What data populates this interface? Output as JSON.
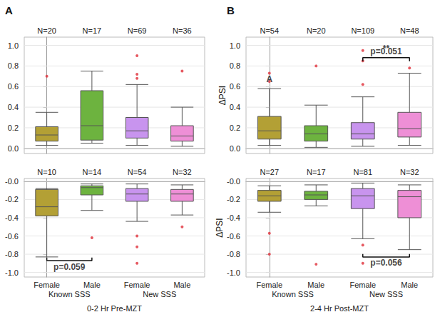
{
  "chart_data": [
    {
      "type": "boxplot",
      "title": "A",
      "categories": [
        "Female",
        "Male",
        "Female",
        "Male"
      ],
      "n_labels": [
        "N=20",
        "N=17",
        "N=69",
        "N=36"
      ],
      "boxes": [
        [
          0.03,
          0.07,
          0.13,
          0.21,
          0.35
        ],
        [
          0.05,
          0.08,
          0.22,
          0.56,
          0.75
        ],
        [
          0.03,
          0.1,
          0.17,
          0.3,
          0.62
        ],
        [
          0.02,
          0.07,
          0.12,
          0.22,
          0.4
        ]
      ],
      "outliers": [
        [
          0.7
        ],
        [],
        [
          0.9,
          0.72,
          0.68
        ],
        [
          0.75
        ]
      ],
      "colors": [
        "#b3a035",
        "#6db33f",
        "#c894ee",
        "#ee8fd6"
      ],
      "ylim": [
        -0.05,
        1.08
      ],
      "yticks": [
        {
          "value": 0,
          "label": "0.0"
        },
        0.2,
        0.4,
        0.6,
        0.8,
        {
          "value": 1,
          "label": "1.0"
        }
      ],
      "grid": true,
      "tick_labels": "y",
      "annotations": []
    },
    {
      "type": "boxplot",
      "categories": [
        "Female",
        "Male",
        "Female",
        "Male"
      ],
      "groups": [
        "Known SSS",
        "New SSS"
      ],
      "xlabel": "0-2 Hr Pre-MZT",
      "n_labels": [
        "N=10",
        "N=14",
        "N=54",
        "N=32"
      ],
      "boxes": [
        [
          -0.83,
          -0.38,
          -0.28,
          -0.09,
          -0.08
        ],
        [
          -0.32,
          -0.15,
          -0.07,
          -0.05,
          -0.03
        ],
        [
          -0.44,
          -0.22,
          -0.14,
          -0.08,
          -0.03
        ],
        [
          -0.37,
          -0.22,
          -0.14,
          -0.09,
          -0.04
        ]
      ],
      "outliers": [
        [],
        [
          -0.62
        ],
        [
          -0.6,
          -0.72,
          -0.9
        ],
        [
          -0.5
        ]
      ],
      "colors": [
        "#b3a035",
        "#6db33f",
        "#c894ee",
        "#ee8fd6"
      ],
      "ylim": [
        -1.05,
        0.03
      ],
      "yticks": [
        {
          "value": -1,
          "label": "-1.0"
        },
        -0.8,
        -0.6,
        -0.4,
        -0.2,
        {
          "value": 0,
          "label": "-0.0"
        }
      ],
      "grid": true,
      "annotations": [
        {
          "text": "p=0.059",
          "x": [
            0,
            1
          ],
          "y": -0.87
        }
      ]
    },
    {
      "type": "boxplot",
      "title": "B",
      "categories": [
        "Female",
        "Male",
        "Female",
        "Male"
      ],
      "n_labels": [
        "N=54",
        "N=20",
        "N=109",
        "N=48"
      ],
      "ylabel": "ΔPSI",
      "boxes": [
        [
          0.03,
          0.09,
          0.17,
          0.31,
          0.58
        ],
        [
          0.01,
          0.07,
          0.14,
          0.22,
          0.42
        ],
        [
          0.02,
          0.09,
          0.14,
          0.25,
          0.5
        ],
        [
          0.03,
          0.11,
          0.19,
          0.35,
          0.73
        ]
      ],
      "outliers": [
        [
          0.73,
          0.65
        ],
        [
          0.8
        ],
        [
          0.95,
          0.85,
          0.62
        ],
        [
          0.78
        ]
      ],
      "colors": [
        "#b3a035",
        "#6db33f",
        "#c894ee",
        "#ee8fd6"
      ],
      "ylim": [
        -0.05,
        1.08
      ],
      "yticks": [
        {
          "value": 0,
          "label": "0.0"
        },
        0.2,
        0.4,
        0.6,
        0.8,
        {
          "value": 1,
          "label": "1.0"
        }
      ],
      "grid": true,
      "tick_labels": "y",
      "annotations": [
        {
          "text": "p=0.051",
          "x": [
            2,
            3
          ],
          "y": 0.88
        },
        {
          "text": "**",
          "x": 2.5,
          "y": 0.97
        },
        {
          "text": "A",
          "x": 0,
          "y": 0.67
        }
      ]
    },
    {
      "type": "boxplot",
      "categories": [
        "Female",
        "Male",
        "Female",
        "Male"
      ],
      "groups": [
        "Known SSS",
        "New SSS"
      ],
      "xlabel": "2-4 Hr Post-MZT",
      "n_labels": [
        "N=27",
        "N=17",
        "N=81",
        "N=32"
      ],
      "ylabel": "ΔPSI",
      "boxes": [
        [
          -0.34,
          -0.22,
          -0.16,
          -0.1,
          -0.05
        ],
        [
          -0.27,
          -0.2,
          -0.15,
          -0.11,
          -0.04
        ],
        [
          -0.63,
          -0.3,
          -0.16,
          -0.08,
          -0.02
        ],
        [
          -0.75,
          -0.4,
          -0.17,
          -0.1,
          -0.04
        ]
      ],
      "outliers": [
        [
          -0.57,
          -0.8
        ],
        [
          -0.91
        ],
        [
          -0.7,
          -0.9
        ],
        []
      ],
      "colors": [
        "#b3a035",
        "#6db33f",
        "#c894ee",
        "#ee8fd6"
      ],
      "ylim": [
        -1.05,
        0.03
      ],
      "yticks": [
        {
          "value": -1,
          "label": "-1.0"
        },
        -0.8,
        -0.6,
        -0.4,
        -0.2,
        {
          "value": 0,
          "label": "-0.0"
        }
      ],
      "grid": true,
      "annotations": [
        {
          "text": "p=0.056",
          "x": [
            2,
            3
          ],
          "y": -0.83
        }
      ]
    }
  ]
}
